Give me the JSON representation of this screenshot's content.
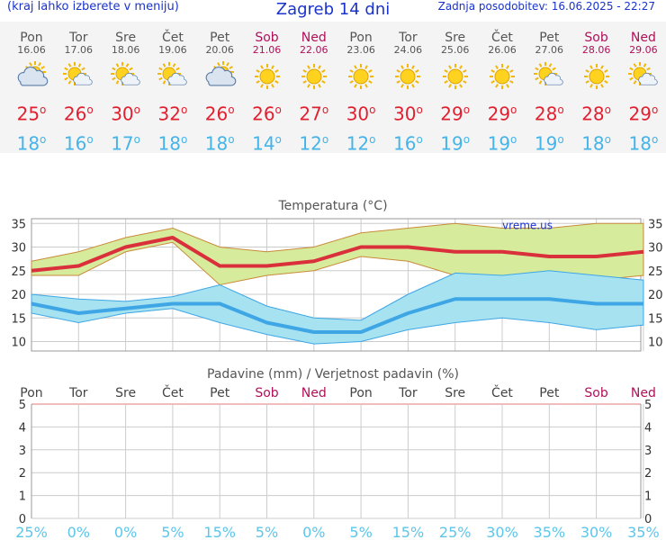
{
  "header": {
    "menu_hint": "(kraj lahko izberete v meniju)",
    "title": "Zagreb 14 dni",
    "updated": "Zadnja posodobitev: 16.06.2025 - 22:27"
  },
  "days": [
    {
      "name": "Pon",
      "date": "16.06",
      "icon": "partly-cloudy",
      "max": "25",
      "min": "18",
      "weekend": false
    },
    {
      "name": "Tor",
      "date": "17.06",
      "icon": "sun-cloud",
      "max": "26",
      "min": "16",
      "weekend": false
    },
    {
      "name": "Sre",
      "date": "18.06",
      "icon": "sun-cloud",
      "max": "30",
      "min": "17",
      "weekend": false
    },
    {
      "name": "Čet",
      "date": "19.06",
      "icon": "sun-cloud",
      "max": "32",
      "min": "18",
      "weekend": false
    },
    {
      "name": "Pet",
      "date": "20.06",
      "icon": "partly-cloudy",
      "max": "26",
      "min": "18",
      "weekend": false
    },
    {
      "name": "Sob",
      "date": "21.06",
      "icon": "sun",
      "max": "26",
      "min": "14",
      "weekend": true
    },
    {
      "name": "Ned",
      "date": "22.06",
      "icon": "sun",
      "max": "27",
      "min": "12",
      "weekend": true
    },
    {
      "name": "Pon",
      "date": "23.06",
      "icon": "sun",
      "max": "30",
      "min": "12",
      "weekend": false
    },
    {
      "name": "Tor",
      "date": "24.06",
      "icon": "sun",
      "max": "30",
      "min": "16",
      "weekend": false
    },
    {
      "name": "Sre",
      "date": "25.06",
      "icon": "sun",
      "max": "29",
      "min": "19",
      "weekend": false
    },
    {
      "name": "Čet",
      "date": "26.06",
      "icon": "sun",
      "max": "29",
      "min": "19",
      "weekend": false
    },
    {
      "name": "Pet",
      "date": "27.06",
      "icon": "sun-cloud",
      "max": "28",
      "min": "19",
      "weekend": false
    },
    {
      "name": "Sob",
      "date": "28.06",
      "icon": "sun",
      "max": "28",
      "min": "18",
      "weekend": true
    },
    {
      "name": "Ned",
      "date": "29.06",
      "icon": "sun-cloud",
      "max": "29",
      "min": "18",
      "weekend": true
    }
  ],
  "degree_mark": "o",
  "colors": {
    "weekend": "#b0105a",
    "max": "#e02030",
    "min": "#45b4e8",
    "header": "#1a33cc"
  },
  "chart_data": [
    {
      "type": "line",
      "title": "Temperatura (°C)",
      "watermark": "vreme.us",
      "ylim": [
        8,
        36
      ],
      "yticks": [
        10,
        15,
        20,
        25,
        30,
        35
      ],
      "grid": true,
      "series": [
        {
          "name": "max",
          "color": "#d9303c",
          "values": [
            25,
            26,
            30,
            32,
            26,
            26,
            27,
            30,
            30,
            29,
            29,
            28,
            28,
            29
          ]
        },
        {
          "name": "max_low",
          "values": [
            24,
            24,
            29,
            31,
            22,
            24,
            25,
            28,
            27,
            24,
            24,
            23,
            23,
            24
          ]
        },
        {
          "name": "max_high",
          "values": [
            27,
            29,
            32,
            34,
            30,
            29,
            30,
            33,
            34,
            35,
            34,
            34,
            35,
            35
          ]
        },
        {
          "name": "min",
          "color": "#3fa6e6",
          "values": [
            18,
            16,
            17,
            18,
            18,
            14,
            12,
            12,
            16,
            19,
            19,
            19,
            18,
            18
          ]
        },
        {
          "name": "min_low",
          "values": [
            16,
            14,
            16,
            17,
            14,
            11.5,
            9.5,
            10,
            12.5,
            14,
            15,
            14,
            12.5,
            13.5
          ]
        },
        {
          "name": "min_high",
          "values": [
            20,
            19,
            18.5,
            19.5,
            22,
            17.5,
            15,
            14.5,
            20,
            24.5,
            24,
            25,
            24,
            23
          ]
        }
      ]
    },
    {
      "type": "bar",
      "title": "Padavine (mm) / Verjetnost padavin (%)",
      "categories": [
        "Pon",
        "Tor",
        "Sre",
        "Čet",
        "Pet",
        "Sob",
        "Ned",
        "Pon",
        "Tor",
        "Sre",
        "Čet",
        "Pet",
        "Sob",
        "Ned"
      ],
      "values": [
        0,
        0,
        0,
        0,
        0,
        0,
        0,
        0,
        0,
        0,
        0,
        0,
        0,
        0
      ],
      "probability": [
        "25%",
        "0%",
        "0%",
        "5%",
        "15%",
        "5%",
        "0%",
        "5%",
        "15%",
        "25%",
        "30%",
        "35%",
        "30%",
        "35%"
      ],
      "ylim": [
        0,
        5
      ],
      "yticks": [
        "0",
        "1",
        "2",
        "3",
        "4",
        "5"
      ],
      "grid": true
    }
  ]
}
